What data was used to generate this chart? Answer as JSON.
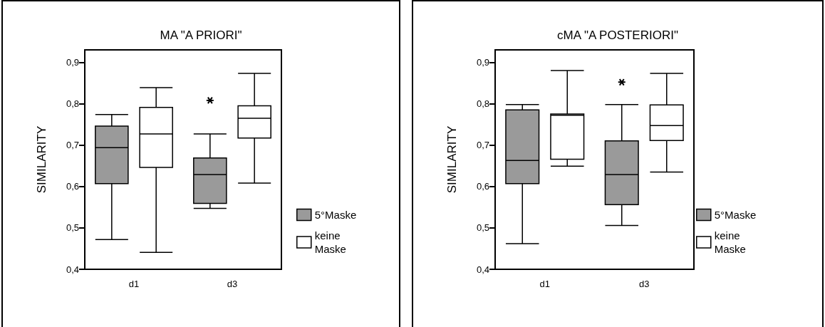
{
  "chart_data": [
    {
      "type": "box",
      "title": "MA \"A PRIORI\"",
      "ylabel": "SIMILARITY",
      "categories": [
        "d1",
        "d3"
      ],
      "ylim": [
        0.4,
        0.93
      ],
      "yticks": [
        {
          "value": 0.4,
          "label": "0,4"
        },
        {
          "value": 0.5,
          "label": "0,5"
        },
        {
          "value": 0.6,
          "label": "0,6"
        },
        {
          "value": 0.7,
          "label": "0,7"
        },
        {
          "value": 0.8,
          "label": "0,8"
        },
        {
          "value": 0.9,
          "label": "0,9"
        }
      ],
      "legend": "right",
      "grid": false,
      "series": [
        {
          "name": "5°Maske",
          "color": "#9a9a9a",
          "boxes": [
            {
              "low": 0.472,
              "q1": 0.607,
              "median": 0.694,
              "q3": 0.746,
              "high": 0.774
            },
            {
              "low": 0.547,
              "q1": 0.559,
              "median": 0.629,
              "q3": 0.669,
              "high": 0.727,
              "outliers": [
                0.808
              ]
            }
          ]
        },
        {
          "name": "keine Maske",
          "color": "#ffffff",
          "boxes": [
            {
              "low": 0.441,
              "q1": 0.646,
              "median": 0.727,
              "q3": 0.791,
              "high": 0.839
            },
            {
              "low": 0.608,
              "q1": 0.717,
              "median": 0.765,
              "q3": 0.795,
              "high": 0.873
            }
          ]
        }
      ]
    },
    {
      "type": "box",
      "title": "cMA \"A POSTERIORI\"",
      "ylabel": "SIMILARITY",
      "categories": [
        "d1",
        "d3"
      ],
      "ylim": [
        0.4,
        0.93
      ],
      "yticks": [
        {
          "value": 0.4,
          "label": "0,4"
        },
        {
          "value": 0.5,
          "label": "0,5"
        },
        {
          "value": 0.6,
          "label": "0,6"
        },
        {
          "value": 0.7,
          "label": "0,7"
        },
        {
          "value": 0.8,
          "label": "0,8"
        },
        {
          "value": 0.9,
          "label": "0,9"
        }
      ],
      "legend": "right",
      "grid": false,
      "series": [
        {
          "name": "5°Maske",
          "color": "#9a9a9a",
          "boxes": [
            {
              "low": 0.462,
              "q1": 0.607,
              "median": 0.663,
              "q3": 0.785,
              "high": 0.798
            },
            {
              "low": 0.506,
              "q1": 0.556,
              "median": 0.629,
              "q3": 0.71,
              "high": 0.798,
              "outliers": [
                0.852
              ]
            }
          ]
        },
        {
          "name": "keine Maske",
          "color": "#ffffff",
          "boxes": [
            {
              "low": 0.649,
              "q1": 0.666,
              "median": 0.772,
              "q3": 0.775,
              "high": 0.88
            },
            {
              "low": 0.635,
              "q1": 0.711,
              "median": 0.747,
              "q3": 0.797,
              "high": 0.873
            }
          ]
        }
      ]
    }
  ]
}
